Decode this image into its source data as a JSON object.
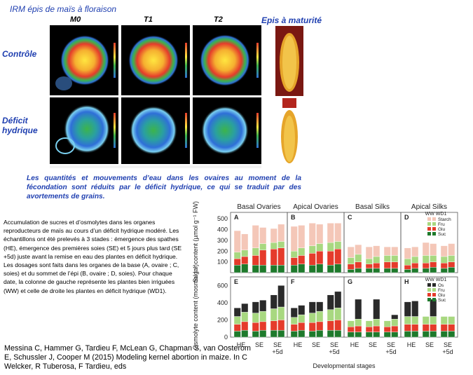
{
  "header": {
    "title": "IRM épis de maïs à floraison",
    "columns": [
      "M0",
      "T1",
      "T2"
    ],
    "maturity_title": "Epis à maturité"
  },
  "rows": [
    "Contrôle",
    "Déficit hydrique"
  ],
  "caption": "Les quantités et mouvements d’eau dans les ovaires au moment de la fécondation sont réduits par le déficit hydrique, ce qui se traduit par des avortements de grains.",
  "paragraph": "Accumulation de sucres et d’osmolytes dans les organes reproducteurs de maïs au cours d’un déficit hydrique modéré. Les échantillons ont été prelevés à 3 stades : émergence des spathes (HE), émergence des premières soies (SE) et 5 jours plus tard (SE +5d) juste avant la remise en eau des plantes en déficit hydrique. Les dosages sont faits dans les organes de la base (A, ovaire ; C, soies) et du sommet de l’épi (B, ovaire ; D, soies). Pour chaque date, la colonne de gauche représente les plantes bien irriguées (WW) et celle de droite les plantes en déficit hydrique (WD1).",
  "citation": "Messina C, Hammer G, Tardieu F, McLean G, Chapman S, van Oosterom E, Schussler J, Cooper M (2015) Modeling kernel abortion in maize. In C Welcker, R Tuberosa, F Tardieu, eds",
  "colors": {
    "title_blue": "#1f3fb0",
    "starch": "#f4c7b8",
    "fru": "#a8d880",
    "glu": "#e53b2b",
    "suc": "#1e7a2c",
    "os": "#2a2a2a"
  },
  "chart_data": {
    "type": "bar",
    "panel_headers": [
      "Basal Ovaries",
      "Apical Ovaries",
      "Basal Silks",
      "Apical Silks"
    ],
    "row_panels": [
      [
        "A",
        "B",
        "C",
        "D"
      ],
      [
        "E",
        "F",
        "G",
        "H"
      ]
    ],
    "categories": [
      "HE",
      "SE",
      "SE\n+5d"
    ],
    "xlabel": "Developmental stages",
    "top_ylabel": "Sugar content (µmol g⁻¹ FW)",
    "top_yticks": [
      100,
      200,
      300,
      400,
      500
    ],
    "bottom_ylabel": "Osmolyte content (mosmol l⁻¹)",
    "bottom_yticks": [
      0,
      200,
      400,
      600
    ],
    "legend_top": {
      "title": "WW WD1",
      "items": [
        "Starch",
        "Fru",
        "Glu",
        "Suc"
      ]
    },
    "legend_bottom": {
      "title": "WW WD1",
      "items": [
        "Os",
        "Fru",
        "Glu",
        "Suc"
      ]
    },
    "top_series_order": [
      "Suc",
      "Glu",
      "Fru",
      "Starch"
    ],
    "bottom_series_order": [
      "Suc",
      "Glu",
      "Fru",
      "Os"
    ],
    "panels": {
      "A": [
        [
          70,
          60,
          60,
          200
        ],
        [
          80,
          70,
          60,
          150
        ],
        [
          70,
          90,
          70,
          210
        ],
        [
          70,
          140,
          60,
          150
        ],
        [
          70,
          150,
          60,
          130
        ],
        [
          70,
          160,
          60,
          160
        ]
      ],
      "B": [
        [
          70,
          70,
          60,
          230
        ],
        [
          80,
          80,
          70,
          210
        ],
        [
          70,
          110,
          70,
          210
        ],
        [
          80,
          120,
          70,
          180
        ],
        [
          70,
          130,
          80,
          180
        ],
        [
          80,
          140,
          70,
          170
        ]
      ],
      "C": [
        [
          30,
          50,
          60,
          100
        ],
        [
          40,
          60,
          70,
          90
        ],
        [
          40,
          40,
          50,
          110
        ],
        [
          40,
          50,
          60,
          100
        ],
        [
          40,
          60,
          60,
          80
        ],
        [
          40,
          60,
          60,
          80
        ]
      ],
      "D": [
        [
          30,
          40,
          60,
          100
        ],
        [
          40,
          50,
          60,
          90
        ],
        [
          40,
          50,
          70,
          120
        ],
        [
          50,
          50,
          60,
          110
        ],
        [
          40,
          50,
          60,
          100
        ],
        [
          50,
          50,
          60,
          110
        ]
      ],
      "E": [
        [
          70,
          80,
          90,
          100
        ],
        [
          80,
          100,
          110,
          100
        ],
        [
          70,
          100,
          110,
          130
        ],
        [
          80,
          100,
          120,
          130
        ],
        [
          80,
          110,
          140,
          160
        ],
        [
          80,
          120,
          150,
          250
        ]
      ],
      "F": [
        [
          70,
          80,
          80,
          110
        ],
        [
          80,
          90,
          90,
          110
        ],
        [
          70,
          100,
          110,
          130
        ],
        [
          80,
          100,
          120,
          110
        ],
        [
          80,
          110,
          130,
          170
        ],
        [
          80,
          120,
          140,
          190
        ]
      ],
      "G": [
        [
          60,
          60,
          70,
          0
        ],
        [
          60,
          70,
          80,
          230
        ],
        [
          60,
          60,
          70,
          0
        ],
        [
          60,
          70,
          80,
          230
        ],
        [
          60,
          60,
          70,
          0
        ],
        [
          60,
          70,
          80,
          50
        ]
      ],
      "H": [
        [
          70,
          80,
          90,
          170
        ],
        [
          70,
          80,
          90,
          180
        ],
        [
          70,
          80,
          90,
          0
        ],
        [
          70,
          80,
          90,
          200
        ],
        [
          70,
          80,
          90,
          0
        ],
        [
          70,
          80,
          90,
          0
        ]
      ]
    }
  }
}
